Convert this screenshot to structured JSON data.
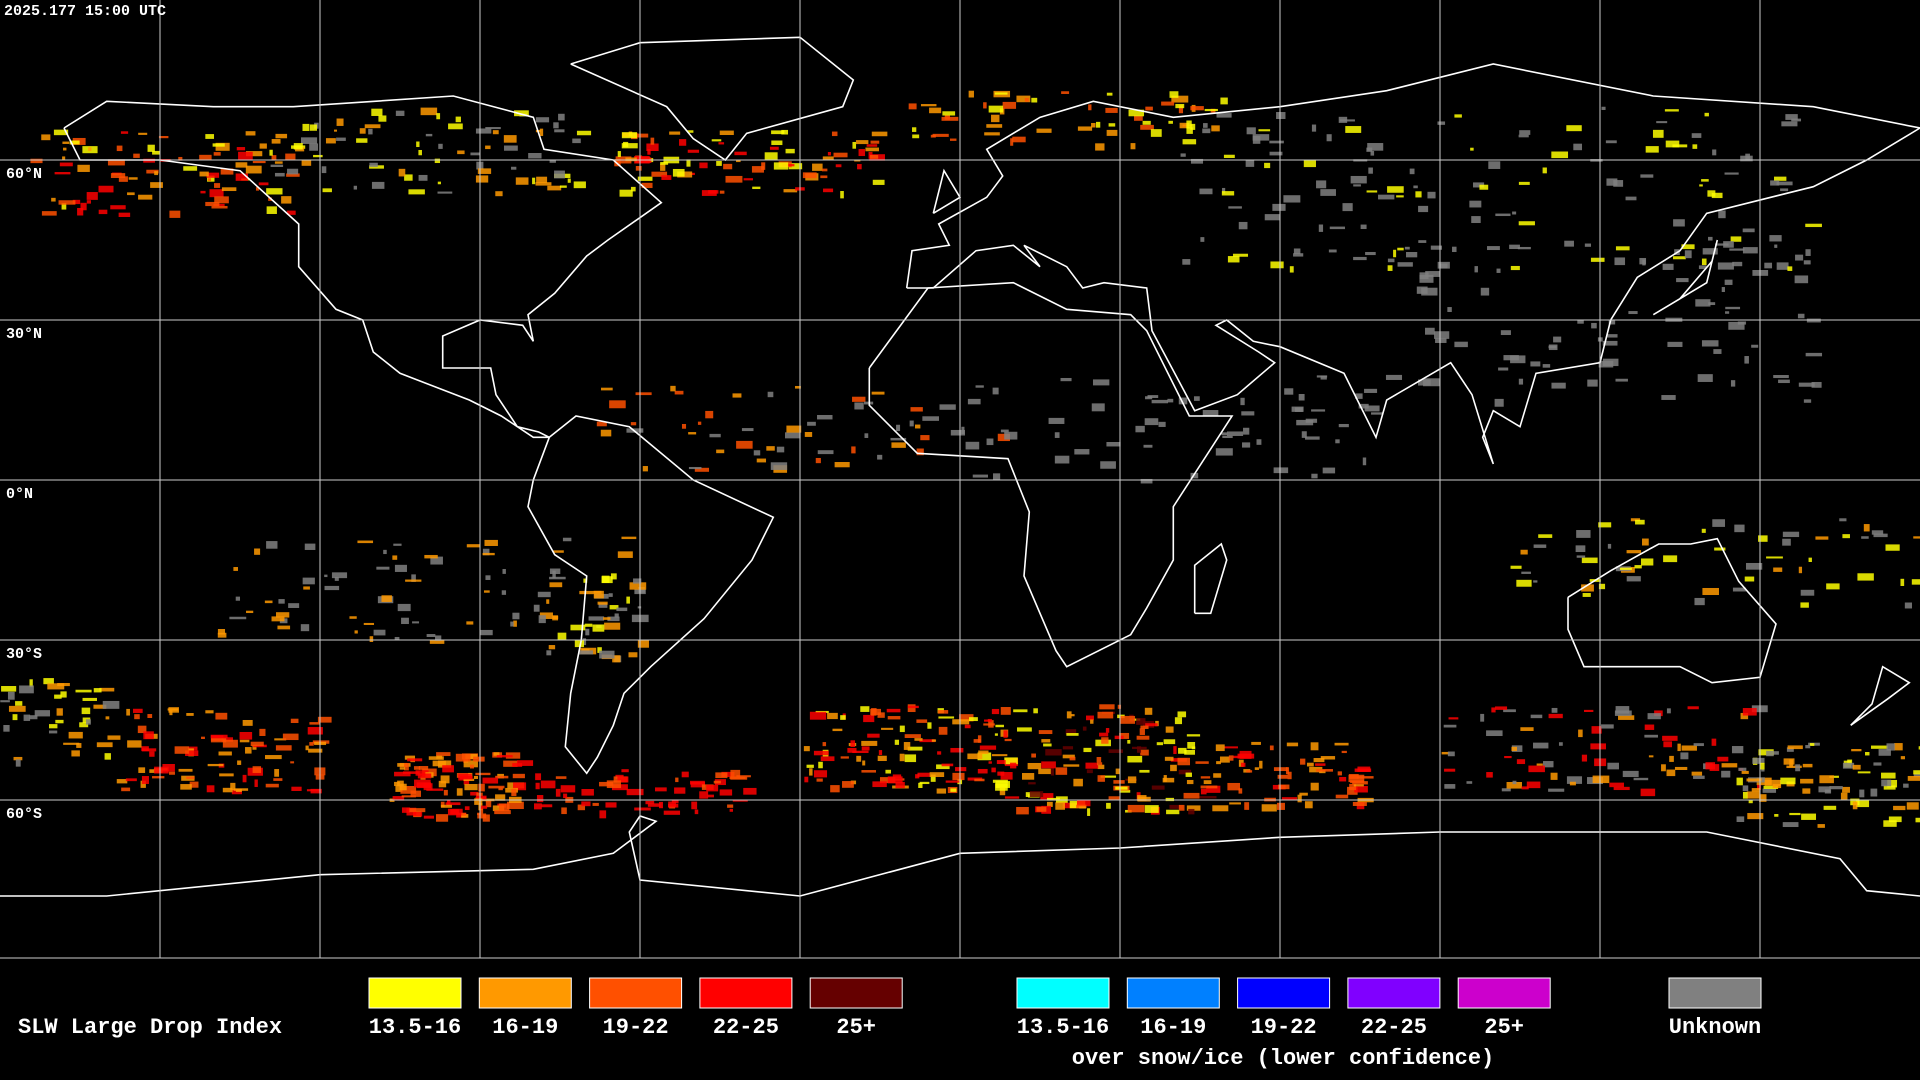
{
  "header": {
    "timestamp": "2025.177 15:00 UTC"
  },
  "map": {
    "latitude_labels": [
      "60°N",
      "30°N",
      "0°N",
      "30°S",
      "60°S"
    ]
  },
  "legend": {
    "title": "SLW Large Drop Index",
    "groups": [
      {
        "items": [
          {
            "label": "13.5-16",
            "color": "#ffff00"
          },
          {
            "label": "16-19",
            "color": "#ff9900"
          },
          {
            "label": "19-22",
            "color": "#ff5000"
          },
          {
            "label": "22-25",
            "color": "#ff0000"
          },
          {
            "label": "25+",
            "color": "#650000"
          }
        ]
      },
      {
        "items": [
          {
            "label": "13.5-16",
            "color": "#00ffff"
          },
          {
            "label": "16-19",
            "color": "#0080ff"
          },
          {
            "label": "19-22",
            "color": "#0000ff"
          },
          {
            "label": "22-25",
            "color": "#8000ff"
          },
          {
            "label": "25+",
            "color": "#cc00cc"
          }
        ],
        "caption": "over snow/ice (lower confidence)"
      },
      {
        "items": [
          {
            "label": "Unknown",
            "color": "#808080"
          }
        ]
      }
    ]
  }
}
